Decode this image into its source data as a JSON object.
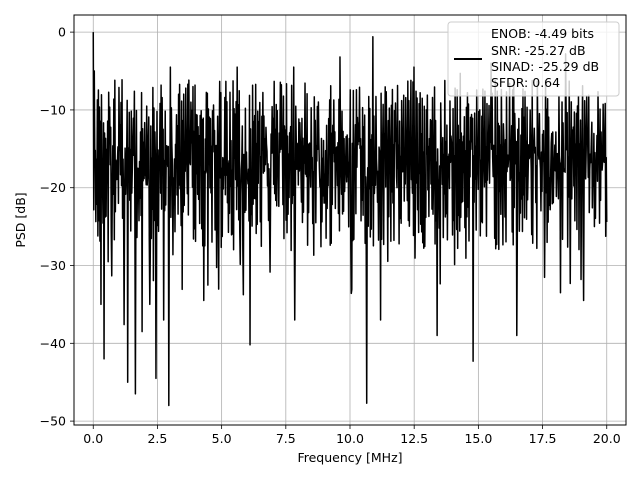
{
  "chart_data": {
    "type": "line",
    "xlabel": "Frequency [MHz]",
    "ylabel": "PSD [dB]",
    "xlim": [
      -0.75,
      20.75
    ],
    "ylim": [
      -50.5,
      2.2
    ],
    "xticks": [
      0.0,
      2.5,
      5.0,
      7.5,
      10.0,
      12.5,
      15.0,
      17.5,
      20.0
    ],
    "xtick_labels": [
      "0.0",
      "2.5",
      "5.0",
      "7.5",
      "10.0",
      "12.5",
      "15.0",
      "17.5",
      "20.0"
    ],
    "yticks": [
      0,
      -10,
      -20,
      -30,
      -40,
      -50
    ],
    "ytick_labels": [
      "0",
      "−10",
      "−20",
      "−30",
      "−40",
      "−50"
    ],
    "grid": true,
    "legend_position": "top-right",
    "legend_lines": [
      "ENOB: -4.49 bits",
      "SNR: -25.27 dB",
      "SINAD: -25.29 dB",
      "SFDR: 0.64"
    ],
    "series": [
      {
        "color": "#000000",
        "x_range": [
          0,
          20
        ],
        "n_points": 1000,
        "seed": 12345,
        "peaks": [
          {
            "x": 0.0,
            "y": 0.0
          },
          {
            "x": 0.05,
            "y": -5.0
          },
          {
            "x": 3.0,
            "y": -4.5
          },
          {
            "x": 5.6,
            "y": -4.5
          },
          {
            "x": 7.8,
            "y": -4.5
          },
          {
            "x": 9.6,
            "y": -3.2
          },
          {
            "x": 10.9,
            "y": -0.6
          },
          {
            "x": 12.5,
            "y": -4.5
          },
          {
            "x": 14.3,
            "y": -5.3
          },
          {
            "x": 15.5,
            "y": -4.0
          },
          {
            "x": 18.4,
            "y": -2.8
          }
        ],
        "dips": [
          {
            "x": 0.3,
            "y": -35.0
          },
          {
            "x": 0.42,
            "y": -42.0
          },
          {
            "x": 1.2,
            "y": -37.6
          },
          {
            "x": 1.35,
            "y": -45.0
          },
          {
            "x": 1.65,
            "y": -46.5
          },
          {
            "x": 1.9,
            "y": -38.5
          },
          {
            "x": 2.2,
            "y": -35.0
          },
          {
            "x": 2.45,
            "y": -44.5
          },
          {
            "x": 2.75,
            "y": -37.0
          },
          {
            "x": 2.95,
            "y": -48.0
          },
          {
            "x": 4.3,
            "y": -34.5
          },
          {
            "x": 6.1,
            "y": -40.2
          },
          {
            "x": 7.85,
            "y": -37.0
          },
          {
            "x": 10.65,
            "y": -47.7
          },
          {
            "x": 11.2,
            "y": -37.0
          },
          {
            "x": 13.4,
            "y": -39.0
          },
          {
            "x": 14.8,
            "y": -42.3
          },
          {
            "x": 16.5,
            "y": -39.0
          },
          {
            "x": 18.2,
            "y": -33.5
          },
          {
            "x": 19.1,
            "y": -34.5
          }
        ]
      }
    ]
  }
}
